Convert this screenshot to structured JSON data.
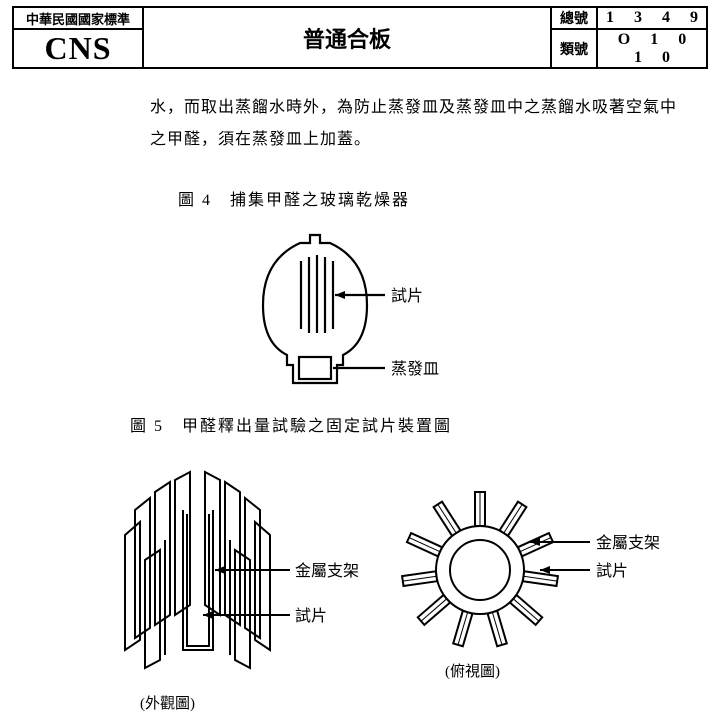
{
  "header": {
    "cns_top": "中華民國國家標準",
    "cns_logo": "CNS",
    "title": "普通合板",
    "serial_label": "總號",
    "serial_number": "1 3 4 9",
    "class_label": "類號",
    "class_number": "O 1 0 1 0"
  },
  "body": {
    "paragraph": "水，而取出蒸餾水時外，為防止蒸發皿及蒸發皿中之蒸餾水吸著空氣中之甲醛，須在蒸發皿上加蓋。"
  },
  "figures": {
    "fig4": {
      "caption": "圖 4　捕集甲醛之玻璃乾燥器",
      "label_specimen": "試片",
      "label_dish": "蒸發皿"
    },
    "fig5": {
      "caption": "圖 5　甲醛釋出量試驗之固定試片裝置圖",
      "label_frame": "金屬支架",
      "label_specimen": "試片",
      "sub_outer": "(外觀圖)",
      "sub_top": "(俯視圖)"
    }
  },
  "style": {
    "stroke": "#000000",
    "stroke_width": 2,
    "background": "#ffffff",
    "text_color": "#000000",
    "body_fontsize": 16,
    "caption_fontsize": 16
  }
}
